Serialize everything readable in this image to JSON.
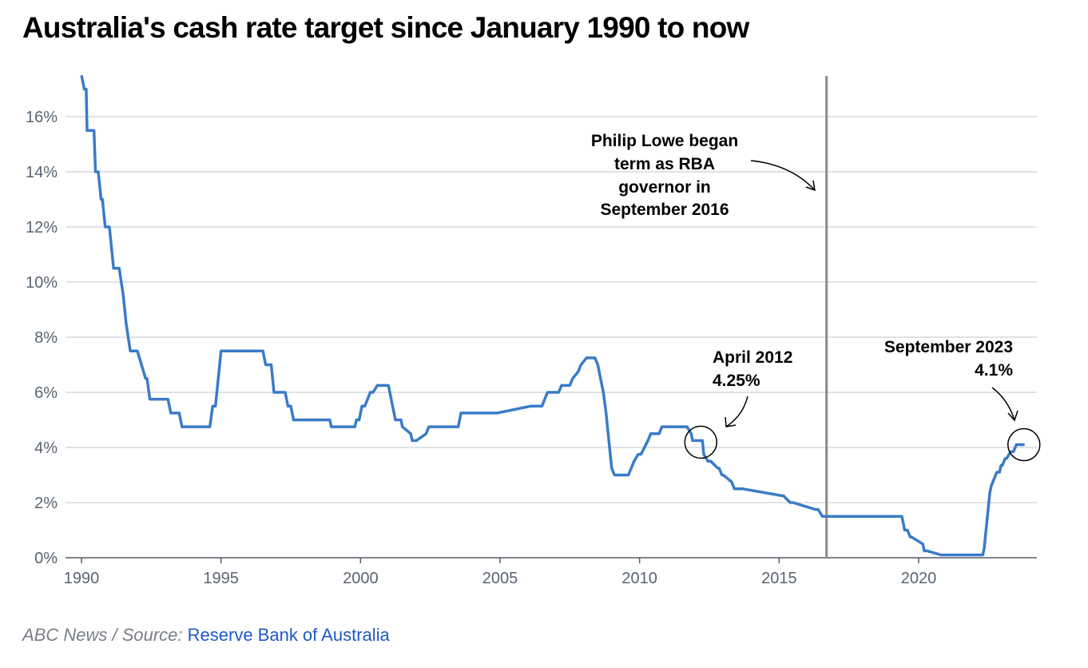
{
  "title": "Australia's cash rate target since January 1990 to now",
  "footer": {
    "credit": "ABC News / Source:",
    "source_link": "Reserve Bank of Australia"
  },
  "colors": {
    "line": "#3a7bc8",
    "grid": "#d5d8dd",
    "marker": "#8a8a8a",
    "axis": "#555c66",
    "link": "#1e5bc6"
  },
  "chart_data": {
    "type": "line",
    "title": "Australia's cash rate target since January 1990 to now",
    "xlabel": "",
    "ylabel": "",
    "xlim": [
      1989.9,
      2024.5
    ],
    "ylim": [
      0,
      17.5
    ],
    "x_ticks": [
      1990,
      1995,
      2000,
      2005,
      2010,
      2015,
      2020
    ],
    "x_tick_labels": [
      "1990",
      "1995",
      "2000",
      "2005",
      "2010",
      "2015",
      "2020"
    ],
    "y_ticks": [
      0,
      2,
      4,
      6,
      8,
      10,
      12,
      14,
      16
    ],
    "y_tick_labels": [
      "0%",
      "2%",
      "4%",
      "6%",
      "8%",
      "10%",
      "12%",
      "14%",
      "16%"
    ],
    "grid": true,
    "series": [
      {
        "x": [
          1990.0,
          1990.1,
          1990.17,
          1990.2,
          1990.25,
          1990.45,
          1990.5,
          1990.6,
          1990.7,
          1990.75,
          1990.85,
          1991.0,
          1991.05,
          1991.15,
          1991.3,
          1991.35,
          1991.5,
          1991.6,
          1991.75,
          1991.8,
          1991.9,
          1992.0,
          1992.3,
          1992.35,
          1992.45,
          1992.5,
          1992.6,
          1993.1,
          1993.2,
          1993.5,
          1993.6,
          1994.6,
          1994.7,
          1994.8,
          1994.9,
          1995.0,
          1996.5,
          1996.6,
          1996.8,
          1996.9,
          1997.3,
          1997.4,
          1997.5,
          1997.6,
          1998.9,
          1998.95,
          1999.8,
          1999.85,
          1999.95,
          2000.05,
          2000.15,
          2000.35,
          2000.45,
          2000.6,
          2000.7,
          2001.0,
          2001.05,
          2001.15,
          2001.25,
          2001.3,
          2001.45,
          2001.5,
          2001.8,
          2001.85,
          2001.95,
          2002.0,
          2002.35,
          2002.45,
          2002.5,
          2003.4,
          2003.5,
          2003.6,
          2004.8,
          2004.9,
          2006.1,
          2006.2,
          2006.3,
          2006.4,
          2006.5,
          2006.6,
          2006.7,
          2007.1,
          2007.2,
          2007.3,
          2007.4,
          2007.5,
          2007.6,
          2007.8,
          2007.9,
          2008.1,
          2008.4,
          2008.5,
          2008.7,
          2008.8,
          2008.9,
          2009.0,
          2009.1,
          2009.2,
          2009.6,
          2009.7,
          2009.8,
          2009.95,
          2010.05,
          2010.3,
          2010.4,
          2010.7,
          2010.8,
          2011.7,
          2011.85,
          2011.9,
          2012.25,
          2012.3,
          2012.45,
          2012.55,
          2012.8,
          2012.85,
          2012.95,
          2013.0,
          2013.3,
          2013.4,
          2013.6,
          2013.7,
          2015.1,
          2015.15,
          2015.4,
          2015.5,
          2016.3,
          2016.4,
          2016.55,
          2016.65,
          2019.4,
          2019.45,
          2019.5,
          2019.6,
          2019.7,
          2019.75,
          2020.15,
          2020.2,
          2020.3,
          2020.8,
          2020.9,
          2022.3,
          2022.35,
          2022.4,
          2022.45,
          2022.5,
          2022.55,
          2022.6,
          2022.7,
          2022.8,
          2022.9,
          2022.95,
          2023.0,
          2023.1,
          2023.15,
          2023.3,
          2023.4,
          2023.5,
          2023.6,
          2023.8
        ],
        "y": [
          17.5,
          17.0,
          17.0,
          15.5,
          15.5,
          15.5,
          14.0,
          14.0,
          13.0,
          13.0,
          12.0,
          12.0,
          11.5,
          10.5,
          10.5,
          10.5,
          9.5,
          8.5,
          7.5,
          7.5,
          7.5,
          7.5,
          6.5,
          6.5,
          5.75,
          5.75,
          5.75,
          5.75,
          5.25,
          5.25,
          4.75,
          4.75,
          5.5,
          5.5,
          6.5,
          7.5,
          7.5,
          7.0,
          7.0,
          6.0,
          6.0,
          5.5,
          5.5,
          5.0,
          5.0,
          4.75,
          4.75,
          5.0,
          5.0,
          5.5,
          5.5,
          6.0,
          6.0,
          6.25,
          6.25,
          6.25,
          6.0,
          5.5,
          5.0,
          5.0,
          5.0,
          4.75,
          4.5,
          4.25,
          4.25,
          4.25,
          4.5,
          4.75,
          4.75,
          4.75,
          4.75,
          5.25,
          5.25,
          5.25,
          5.5,
          5.5,
          5.5,
          5.5,
          5.5,
          5.75,
          6.0,
          6.0,
          6.25,
          6.25,
          6.25,
          6.25,
          6.5,
          6.75,
          7.0,
          7.25,
          7.25,
          7.0,
          6.0,
          5.25,
          4.25,
          3.25,
          3.0,
          3.0,
          3.0,
          3.25,
          3.5,
          3.75,
          3.75,
          4.25,
          4.5,
          4.5,
          4.75,
          4.75,
          4.5,
          4.25,
          4.25,
          3.75,
          3.5,
          3.5,
          3.25,
          3.25,
          3.0,
          3.0,
          2.75,
          2.5,
          2.5,
          2.5,
          2.25,
          2.25,
          2.0,
          2.0,
          1.75,
          1.75,
          1.5,
          1.5,
          1.5,
          1.25,
          1.0,
          1.0,
          0.75,
          0.75,
          0.5,
          0.25,
          0.25,
          0.1,
          0.1,
          0.1,
          0.35,
          0.85,
          1.35,
          1.85,
          2.35,
          2.6,
          2.85,
          3.1,
          3.1,
          3.35,
          3.35,
          3.6,
          3.6,
          3.85,
          3.85,
          4.1,
          4.1,
          4.1
        ]
      }
    ],
    "vertical_marker": {
      "x": 2016.7,
      "label": [
        "Philip Lowe began",
        "term as RBA",
        "governor in",
        "September 2016"
      ]
    },
    "annotations": [
      {
        "label": [
          "April 2012",
          "4.25%"
        ],
        "x": 2012.25,
        "y": 4.25
      },
      {
        "label": [
          "September 2023",
          "4.1%"
        ],
        "x": 2023.6,
        "y": 4.1
      }
    ]
  }
}
